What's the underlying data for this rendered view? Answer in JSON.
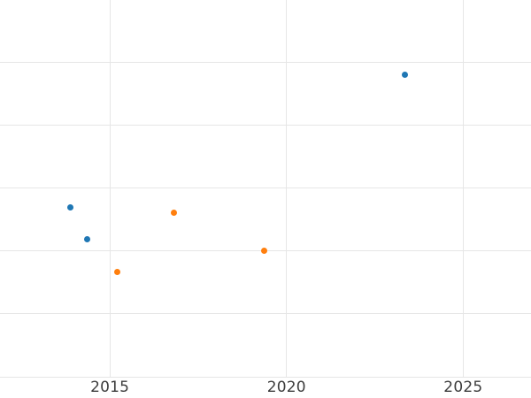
{
  "chart": {
    "background_color": "#ffffff",
    "grid_color": "#e6e6e6",
    "tick_text_color": "#3d3d3d"
  },
  "chart_data": {
    "type": "scatter",
    "title": "",
    "xlabel": "",
    "ylabel": "",
    "grid": true,
    "legend": "none",
    "x_tick_labels": [
      "2015",
      "2020",
      "2025"
    ],
    "x_tick_values": [
      2015,
      2020,
      2025
    ],
    "y_tick_labels": [],
    "y_gridline_values": [
      0,
      1,
      2,
      3,
      4,
      5
    ],
    "xlim": [
      2011.89,
      2026.92
    ],
    "ylim": [
      0,
      5.99
    ],
    "y_units": "unlabeled-gridline-units",
    "marker_diameter_px": 7,
    "series": [
      {
        "name": "series-blue",
        "color": "#1f77b4",
        "marker": "circle",
        "points": [
          {
            "x": 2013.87,
            "y": 2.69
          },
          {
            "x": 2014.36,
            "y": 2.18
          },
          {
            "x": 2023.35,
            "y": 4.8
          }
        ]
      },
      {
        "name": "series-orange",
        "color": "#ff7f0e",
        "marker": "circle",
        "points": [
          {
            "x": 2015.21,
            "y": 1.67
          },
          {
            "x": 2016.81,
            "y": 2.61
          },
          {
            "x": 2019.36,
            "y": 2.01
          }
        ]
      }
    ]
  }
}
